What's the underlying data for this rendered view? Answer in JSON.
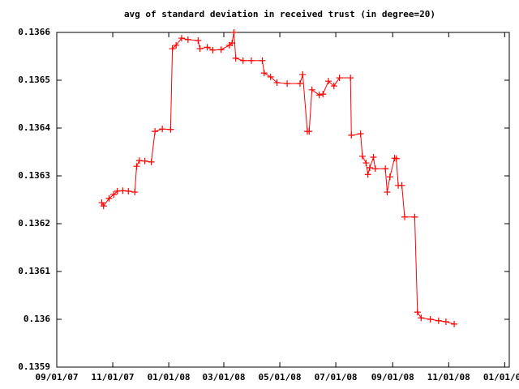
{
  "chart_data": {
    "type": "line",
    "title": "avg of standard deviation in received trust (in degree=20)",
    "color": "#ff0000",
    "x": [
      "2007-10-20",
      "2007-10-22",
      "2007-10-28",
      "2007-11-02",
      "2007-11-06",
      "2007-11-12",
      "2007-11-18",
      "2007-11-25",
      "2007-11-27",
      "2007-11-30",
      "2007-12-06",
      "2007-12-13",
      "2007-12-17",
      "2007-12-25",
      "2008-01-03",
      "2008-01-05",
      "2008-01-09",
      "2008-01-15",
      "2008-01-22",
      "2008-02-02",
      "2008-02-04",
      "2008-02-12",
      "2008-02-18",
      "2008-02-27",
      "2008-03-07",
      "2008-03-10",
      "2008-03-12",
      "2008-03-14",
      "2008-03-22",
      "2008-03-31",
      "2008-04-12",
      "2008-04-14",
      "2008-04-21",
      "2008-04-28",
      "2008-05-09",
      "2008-05-23",
      "2008-05-26",
      "2008-05-31",
      "2008-06-02",
      "2008-06-05",
      "2008-06-13",
      "2008-06-17",
      "2008-06-23",
      "2008-06-29",
      "2008-07-05",
      "2008-07-17",
      "2008-07-18",
      "2008-07-28",
      "2008-07-30",
      "2008-08-03",
      "2008-08-05",
      "2008-08-07",
      "2008-08-11",
      "2008-08-13",
      "2008-08-24",
      "2008-08-26",
      "2008-08-29",
      "2008-09-03",
      "2008-09-05",
      "2008-09-07",
      "2008-09-11",
      "2008-09-14",
      "2008-09-25",
      "2008-09-28",
      "2008-10-02",
      "2008-10-12",
      "2008-10-21",
      "2008-10-29",
      "2008-11-07"
    ],
    "values": [
      0.136244,
      0.136237,
      0.136253,
      0.136261,
      0.136268,
      0.136269,
      0.136268,
      0.136266,
      0.13632,
      0.136332,
      0.136331,
      0.136329,
      0.136393,
      0.136398,
      0.136397,
      0.136566,
      0.136573,
      0.136588,
      0.136585,
      0.136583,
      0.136566,
      0.136569,
      0.136563,
      0.136564,
      0.136573,
      0.136578,
      0.1366,
      0.136546,
      0.136541,
      0.136541,
      0.136541,
      0.136515,
      0.136507,
      0.136495,
      0.136493,
      0.136493,
      0.136512,
      0.136393,
      0.136393,
      0.13648,
      0.136469,
      0.136471,
      0.136498,
      0.136488,
      0.136505,
      0.136505,
      0.136385,
      0.136388,
      0.136341,
      0.136327,
      0.136303,
      0.136317,
      0.136339,
      0.136315,
      0.136315,
      0.136266,
      0.136298,
      0.136337,
      0.136336,
      0.13628,
      0.13628,
      0.136214,
      0.136214,
      0.136015,
      0.136003,
      0.136,
      0.135997,
      0.135995,
      0.13599
    ],
    "xlim": [
      "2007-09-01",
      "2009-01-06"
    ],
    "xticks": [
      {
        "value": "2007-09-01",
        "label": "09/01/07"
      },
      {
        "value": "2007-11-01",
        "label": "11/01/07"
      },
      {
        "value": "2008-01-01",
        "label": "01/01/08"
      },
      {
        "value": "2008-03-01",
        "label": "03/01/08"
      },
      {
        "value": "2008-05-01",
        "label": "05/01/08"
      },
      {
        "value": "2008-07-01",
        "label": "07/01/08"
      },
      {
        "value": "2008-09-01",
        "label": "09/01/08"
      },
      {
        "value": "2008-11-01",
        "label": "11/01/08"
      },
      {
        "value": "2009-01-01",
        "label": "01/01/09"
      }
    ],
    "ylim": [
      0.1359,
      0.1366
    ],
    "yticks": [
      0.1359,
      0.136,
      0.1361,
      0.1362,
      0.1363,
      0.1364,
      0.1365,
      0.1366
    ]
  }
}
